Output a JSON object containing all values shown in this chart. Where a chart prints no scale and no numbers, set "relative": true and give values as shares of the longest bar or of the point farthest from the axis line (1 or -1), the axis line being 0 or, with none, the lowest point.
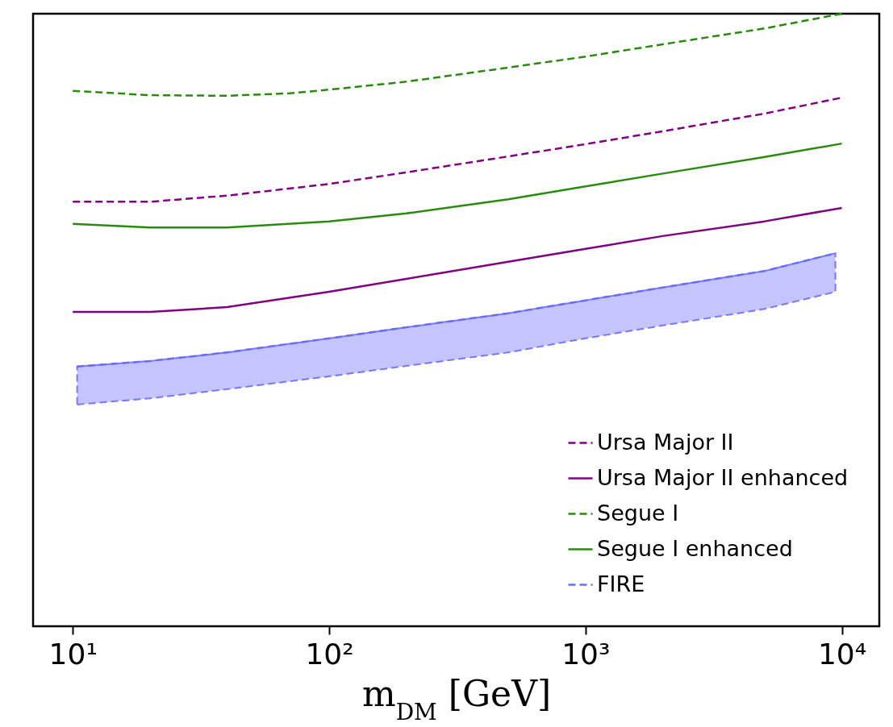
{
  "chart_data": {
    "type": "line",
    "relative": true,
    "xlabel": "m$_{DM}$ [GeV]",
    "log": "x",
    "xlim": [
      7,
      14000
    ],
    "xticks": [
      {
        "value": 10,
        "label": "10¹"
      },
      {
        "value": 100,
        "label": "10²"
      },
      {
        "value": 1000,
        "label": "10³"
      },
      {
        "value": 10000,
        "label": "10⁴"
      }
    ],
    "legend": "bottom right",
    "grid": false,
    "series": [
      {
        "name": "Ursa Major II",
        "color": "#800080",
        "line_style": "dashed",
        "x": [
          10,
          20,
          40,
          100,
          200,
          500,
          1000,
          2000,
          5000,
          10000
        ],
        "values": [
          0.693,
          0.693,
          0.703,
          0.722,
          0.741,
          0.767,
          0.787,
          0.808,
          0.837,
          0.863
        ]
      },
      {
        "name": "Ursa Major II enhanced",
        "color": "#800080",
        "line_style": "solid",
        "x": [
          10,
          20,
          40,
          100,
          200,
          500,
          1000,
          2000,
          5000,
          10000
        ],
        "values": [
          0.513,
          0.513,
          0.521,
          0.546,
          0.567,
          0.595,
          0.616,
          0.637,
          0.661,
          0.683
        ]
      },
      {
        "name": "Segue I",
        "color": "#2a8a10",
        "line_style": "dashed",
        "x": [
          10,
          20,
          40,
          70,
          100,
          200,
          500,
          1000,
          2000,
          5000,
          10000
        ],
        "values": [
          0.874,
          0.867,
          0.866,
          0.87,
          0.876,
          0.889,
          0.912,
          0.93,
          0.95,
          0.976,
          1
        ]
      },
      {
        "name": "Segue I enhanced",
        "color": "#2a8a10",
        "line_style": "solid",
        "x": [
          10,
          20,
          40,
          100,
          200,
          500,
          1000,
          2000,
          5000,
          10000
        ],
        "values": [
          0.657,
          0.651,
          0.651,
          0.661,
          0.674,
          0.697,
          0.718,
          0.739,
          0.766,
          0.788
        ]
      },
      {
        "name": "FIRE",
        "color": "#6b6bff",
        "line_style": "dashed",
        "x": [
          10.4,
          20,
          40,
          100,
          200,
          500,
          1000,
          2000,
          5000,
          9440
        ],
        "values": [
          0.424,
          0.433,
          0.447,
          0.47,
          0.488,
          0.511,
          0.532,
          0.553,
          0.58,
          0.609
        ],
        "lower": [
          0.362,
          0.372,
          0.387,
          0.408,
          0.425,
          0.447,
          0.47,
          0.491,
          0.518,
          0.546
        ],
        "upper": [
          0.424,
          0.433,
          0.447,
          0.47,
          0.488,
          0.511,
          0.532,
          0.553,
          0.58,
          0.609
        ]
      }
    ]
  }
}
